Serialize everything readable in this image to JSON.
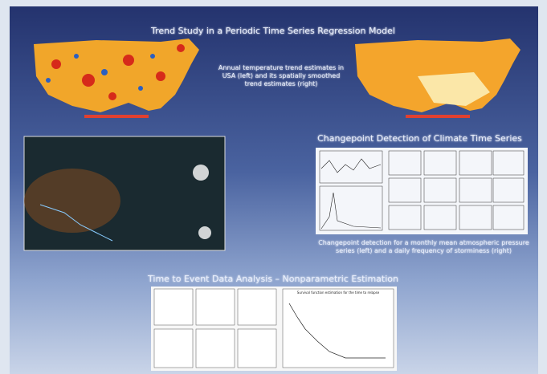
{
  "header": {
    "title": "Trend Study in a Periodic Time Series Regression Model"
  },
  "sections": [
    {
      "caption": "Annual temperature trend estimates in USA (left) and its spatially smoothed trend estimates (right)"
    },
    {
      "title": "Changepoint Detection of Climate Time Series",
      "caption": "Changepoint detection for a monthly mean atmospheric pressure series (left) and a daily frequency of storminess (right)"
    },
    {
      "title": "Time to Event Data Analysis – Nonparametric Estimation",
      "plot_title": "Survival function estimation for the time to relapse"
    }
  ]
}
